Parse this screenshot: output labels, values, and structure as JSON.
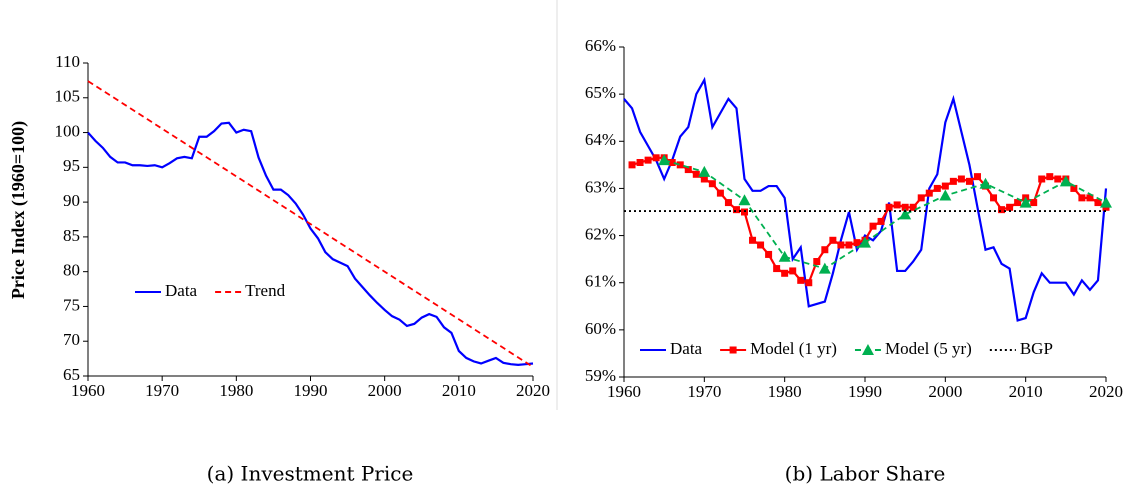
{
  "chart_data": [
    {
      "type": "line",
      "ylabel": "Price Index (1960=100)",
      "caption": "(a) Investment Price",
      "x": [
        1960,
        1961,
        1962,
        1963,
        1964,
        1965,
        1966,
        1967,
        1968,
        1969,
        1970,
        1971,
        1972,
        1973,
        1974,
        1975,
        1976,
        1977,
        1978,
        1979,
        1980,
        1981,
        1982,
        1983,
        1984,
        1985,
        1986,
        1987,
        1988,
        1989,
        1990,
        1991,
        1992,
        1993,
        1994,
        1995,
        1996,
        1997,
        1998,
        1999,
        2000,
        2001,
        2002,
        2003,
        2004,
        2005,
        2006,
        2007,
        2008,
        2009,
        2010,
        2011,
        2012,
        2013,
        2014,
        2015,
        2016,
        2017,
        2018,
        2019,
        2020
      ],
      "series": [
        {
          "name": "Data",
          "color": "#0000ff",
          "dash": "solid",
          "values": [
            100,
            98.8,
            97.8,
            96.5,
            95.7,
            95.7,
            95.3,
            95.3,
            95.2,
            95.3,
            95.0,
            95.6,
            96.3,
            96.5,
            96.3,
            99.4,
            99.4,
            100.2,
            101.3,
            101.4,
            100.0,
            100.4,
            100.2,
            96.4,
            93.8,
            91.8,
            91.8,
            91.0,
            89.8,
            88.2,
            86.2,
            84.8,
            82.8,
            81.8,
            81.3,
            80.8,
            79.0,
            77.8,
            76.6,
            75.5,
            74.5,
            73.6,
            73.1,
            72.2,
            72.5,
            73.4,
            73.9,
            73.5,
            72.0,
            71.2,
            68.6,
            67.6,
            67.1,
            66.8,
            67.2,
            67.6,
            66.9,
            66.7,
            66.6,
            66.7,
            66.8
          ]
        },
        {
          "name": "Trend",
          "color": "#ff0000",
          "dash": "dashed",
          "x": [
            1960,
            2020
          ],
          "values": [
            107.4,
            66.3
          ]
        }
      ],
      "xlim": [
        1960,
        2020
      ],
      "xticks": [
        1960,
        1970,
        1980,
        1990,
        2000,
        2010,
        2020
      ],
      "ylim": [
        65,
        110
      ],
      "yticks": [
        65,
        70,
        75,
        80,
        85,
        90,
        95,
        100,
        105,
        110
      ]
    },
    {
      "type": "line",
      "caption": "(b) Labor Share",
      "x": [
        1960,
        1961,
        1962,
        1963,
        1964,
        1965,
        1966,
        1967,
        1968,
        1969,
        1970,
        1971,
        1972,
        1973,
        1974,
        1975,
        1976,
        1977,
        1978,
        1979,
        1980,
        1981,
        1982,
        1983,
        1984,
        1985,
        1986,
        1987,
        1988,
        1989,
        1990,
        1991,
        1992,
        1993,
        1994,
        1995,
        1996,
        1997,
        1998,
        1999,
        2000,
        2001,
        2002,
        2003,
        2004,
        2005,
        2006,
        2007,
        2008,
        2009,
        2010,
        2011,
        2012,
        2013,
        2014,
        2015,
        2016,
        2017,
        2018,
        2019,
        2020
      ],
      "series": [
        {
          "name": "Data",
          "color": "#0000ff",
          "dash": "solid",
          "values": [
            64.9,
            64.7,
            64.2,
            63.9,
            63.6,
            63.2,
            63.6,
            64.1,
            64.3,
            65.0,
            65.3,
            64.3,
            64.6,
            64.9,
            64.7,
            63.2,
            62.95,
            62.95,
            63.05,
            63.05,
            62.8,
            61.5,
            61.75,
            60.5,
            60.55,
            60.6,
            61.2,
            61.9,
            62.5,
            61.7,
            62.0,
            61.9,
            62.1,
            62.7,
            61.25,
            61.25,
            61.45,
            61.7,
            63.0,
            63.3,
            64.4,
            64.9,
            64.2,
            63.5,
            62.6,
            61.7,
            61.75,
            61.4,
            61.3,
            60.2,
            60.25,
            60.8,
            61.2,
            61.0,
            61.0,
            61.0,
            60.75,
            61.05,
            60.85,
            61.05,
            63.0
          ]
        },
        {
          "name": "Model (1 yr)",
          "color": "#ff0000",
          "dash": "solid",
          "marker": "square",
          "values": [
            null,
            63.5,
            63.55,
            63.6,
            63.65,
            63.65,
            63.55,
            63.5,
            63.4,
            63.3,
            63.2,
            63.1,
            62.9,
            62.7,
            62.55,
            62.5,
            61.9,
            61.8,
            61.6,
            61.3,
            61.2,
            61.25,
            61.05,
            61.0,
            61.45,
            61.7,
            61.9,
            61.8,
            61.8,
            61.85,
            61.9,
            62.2,
            62.3,
            62.6,
            62.65,
            62.6,
            62.6,
            62.8,
            62.9,
            63.0,
            63.05,
            63.15,
            63.2,
            63.15,
            63.25,
            63.05,
            62.8,
            62.55,
            62.6,
            62.7,
            62.8,
            62.7,
            63.2,
            63.25,
            63.2,
            63.2,
            63.0,
            62.8,
            62.8,
            62.7,
            62.6
          ]
        },
        {
          "name": "Model (5 yr)",
          "color": "#00b050",
          "dash": "dashed",
          "marker": "triangle",
          "x": [
            1965,
            1970,
            1975,
            1980,
            1985,
            1990,
            1995,
            2000,
            2005,
            2010,
            2015,
            2020
          ],
          "values": [
            63.6,
            63.35,
            62.75,
            61.55,
            61.3,
            61.85,
            62.45,
            62.85,
            63.1,
            62.7,
            63.15,
            62.7
          ]
        },
        {
          "name": "BGP",
          "color": "#000000",
          "dash": "dotted",
          "x": [
            1960,
            2020
          ],
          "values": [
            62.52,
            62.52
          ]
        }
      ],
      "xlim": [
        1960,
        2020
      ],
      "xticks": [
        1960,
        1970,
        1980,
        1990,
        2000,
        2010,
        2020
      ],
      "ylim": [
        59,
        66
      ],
      "yticks": [
        {
          "value": 59,
          "label": "59%"
        },
        {
          "value": 60,
          "label": "60%"
        },
        {
          "value": 61,
          "label": "61%"
        },
        {
          "value": 62,
          "label": "62%"
        },
        {
          "value": 63,
          "label": "63%"
        },
        {
          "value": 64,
          "label": "64%"
        },
        {
          "value": 65,
          "label": "65%"
        },
        {
          "value": 66,
          "label": "66%"
        }
      ]
    }
  ]
}
